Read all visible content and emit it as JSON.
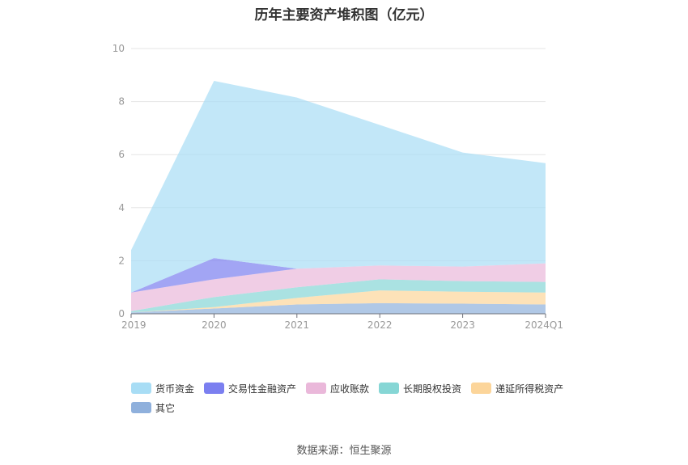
{
  "chart_data": {
    "type": "area",
    "stacked": true,
    "title": "历年主要资产堆积图（亿元）",
    "categories": [
      "2019",
      "2020",
      "2021",
      "2022",
      "2023",
      "2024Q1"
    ],
    "ylim": [
      0,
      10
    ],
    "yticks": [
      0,
      2,
      4,
      6,
      8,
      10
    ],
    "grid": true,
    "legend_position": "bottom",
    "series": [
      {
        "name": "其它",
        "color": "#8fb0dc",
        "values": [
          0.05,
          0.2,
          0.35,
          0.4,
          0.38,
          0.35
        ]
      },
      {
        "name": "递延所得税资产",
        "color": "#fcd59a",
        "values": [
          0.0,
          0.05,
          0.25,
          0.48,
          0.45,
          0.45
        ]
      },
      {
        "name": "长期股权投资",
        "color": "#86d6d5",
        "values": [
          0.05,
          0.38,
          0.4,
          0.42,
          0.4,
          0.4
        ]
      },
      {
        "name": "应收账款",
        "color": "#eab8da",
        "values": [
          0.7,
          0.67,
          0.7,
          0.52,
          0.55,
          0.7
        ]
      },
      {
        "name": "交易性金融资产",
        "color": "#7b7ff0",
        "values": [
          0.0,
          0.8,
          0.0,
          0.0,
          0.0,
          0.0
        ]
      },
      {
        "name": "货币资金",
        "color": "#a8ddf5",
        "values": [
          1.6,
          6.68,
          6.45,
          5.3,
          4.3,
          3.78
        ]
      }
    ]
  },
  "legend_items": [
    {
      "name": "货币资金",
      "color": "#a8ddf5"
    },
    {
      "name": "交易性金融资产",
      "color": "#7b7ff0"
    },
    {
      "name": "应收账款",
      "color": "#eab8da"
    },
    {
      "name": "长期股权投资",
      "color": "#86d6d5"
    },
    {
      "name": "递延所得税资产",
      "color": "#fcd59a"
    },
    {
      "name": "其它",
      "color": "#8fb0dc"
    }
  ],
  "source": "数据来源：恒生聚源"
}
